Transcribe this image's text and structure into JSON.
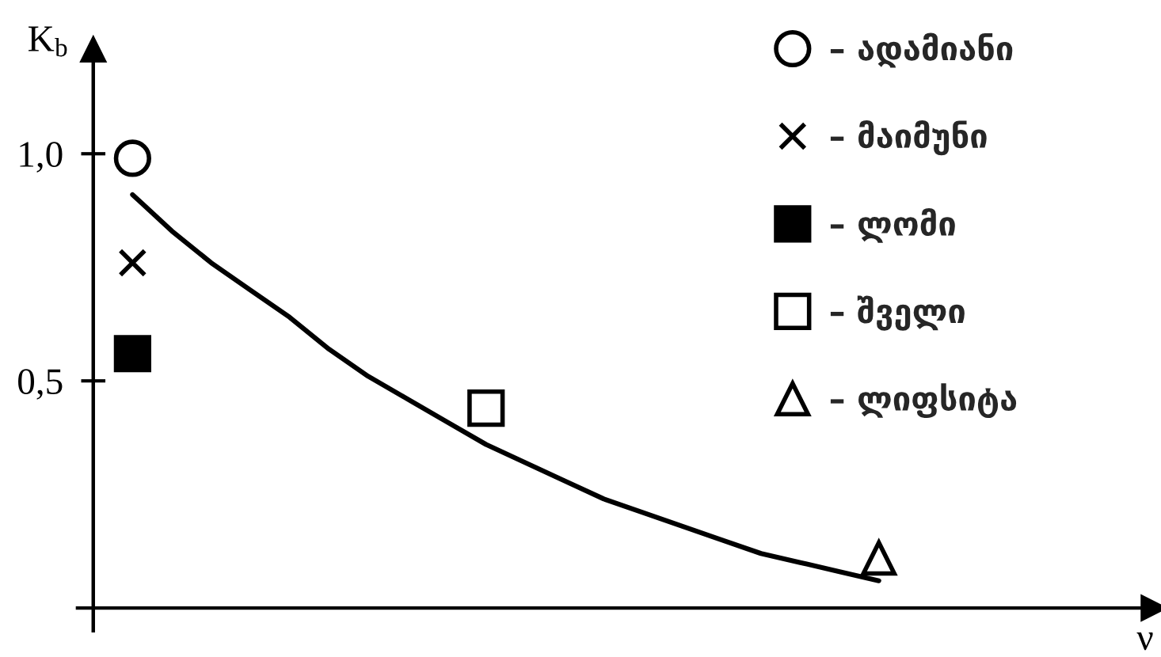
{
  "chart_data": {
    "type": "scatter",
    "ylabel": "K$_{b}$",
    "annotations": [
      "ν"
    ],
    "categories": [
      null,
      null,
      null,
      null,
      null,
      null,
      null,
      null,
      null,
      null,
      null,
      null,
      null,
      null,
      null,
      null,
      null,
      null,
      null,
      null
    ],
    "ylim": [
      -0.05,
      1.23
    ],
    "yticks": [
      {
        "value": 0.5,
        "label": "0,5"
      },
      {
        "value": 1.0,
        "label": "1,0"
      }
    ],
    "tick_labels": "y",
    "legend": "top right",
    "series": [
      {
        "name": "– ადამიანი",
        "color": "#000000",
        "marker": "circle",
        "values": [
          0.99,
          null,
          null,
          null,
          null,
          null,
          null,
          null,
          null,
          null,
          null,
          null,
          null,
          null,
          null,
          null,
          null,
          null,
          null,
          null
        ]
      },
      {
        "name": "– მაიმუნი",
        "color": "#000000",
        "marker": "cross",
        "values": [
          0.76,
          null,
          null,
          null,
          null,
          null,
          null,
          null,
          null,
          null,
          null,
          null,
          null,
          null,
          null,
          null,
          null,
          null,
          null,
          null
        ]
      },
      {
        "name": "– ლომი",
        "color": "#000000",
        "marker": "square",
        "colors": [
          "#000000",
          null,
          null,
          null,
          null,
          null,
          null,
          null,
          null,
          null,
          null,
          null,
          null,
          null,
          null,
          null,
          null,
          null,
          null,
          null
        ],
        "values": [
          0.56,
          null,
          null,
          null,
          null,
          null,
          null,
          null,
          null,
          null,
          null,
          null,
          null,
          null,
          null,
          null,
          null,
          null,
          null,
          null
        ]
      },
      {
        "name": "– შველი",
        "color": "#000000",
        "marker": "square",
        "values": [
          null,
          null,
          null,
          null,
          null,
          null,
          null,
          null,
          null,
          0.44,
          null,
          null,
          null,
          null,
          null,
          null,
          null,
          null,
          null,
          null
        ]
      },
      {
        "name": "– ლიფსიტა",
        "color": "#000000",
        "marker": "triangle",
        "values": [
          null,
          null,
          null,
          null,
          null,
          null,
          null,
          null,
          null,
          null,
          null,
          null,
          null,
          null,
          null,
          null,
          null,
          null,
          null,
          0.11
        ]
      },
      {
        "type": "line",
        "color": "#000000",
        "values": [
          0.91,
          0.83,
          0.76,
          0.7,
          0.64,
          0.57,
          0.51,
          0.46,
          0.41,
          0.36,
          0.32,
          0.28,
          0.24,
          0.21,
          0.18,
          0.15,
          0.12,
          0.1,
          0.08,
          0.06
        ]
      }
    ]
  }
}
